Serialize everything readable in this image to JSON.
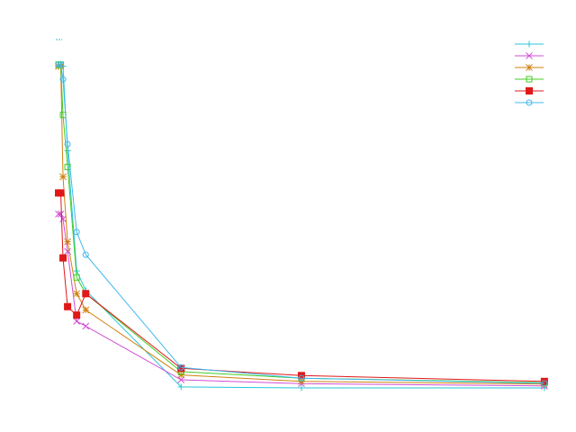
{
  "chart_data": {
    "type": "line",
    "title": "",
    "xlabel": "",
    "ylabel": "",
    "grid": false,
    "legend_position": "top-right",
    "xlim": [
      0,
      55
    ],
    "ylim": [
      0,
      1
    ],
    "series": [
      {
        "color": "#26c6da",
        "marker": "plus",
        "x": [
          0,
          0.25,
          0.5,
          1,
          2,
          3,
          13.5,
          26.75,
          53.5
        ],
        "y": [
          0.994,
          0.997,
          0.99,
          0.73,
          0.36,
          0.3,
          0.003,
          0.0,
          0.0
        ]
      },
      {
        "color": "#d24ed6",
        "marker": "x",
        "x": [
          0,
          0.25,
          0.5,
          1,
          2,
          3,
          13.5,
          26.75,
          53.5
        ],
        "y": [
          0.535,
          0.535,
          0.52,
          0.42,
          0.205,
          0.19,
          0.025,
          0.013,
          0.006
        ]
      },
      {
        "color": "#d08010",
        "marker": "asterisk",
        "x": [
          0,
          0.25,
          0.5,
          1,
          2,
          3,
          13.5,
          26.75,
          53.5
        ],
        "y": [
          0.99,
          0.99,
          0.65,
          0.45,
          0.29,
          0.24,
          0.04,
          0.02,
          0.012
        ]
      },
      {
        "color": "#44cc22",
        "marker": "square-open",
        "x": [
          0,
          0.25,
          0.5,
          1,
          2,
          3,
          13.5,
          26.75,
          53.5
        ],
        "y": [
          0.995,
          0.995,
          0.84,
          0.68,
          0.34,
          0.29,
          0.05,
          0.03,
          0.016
        ]
      },
      {
        "color": "#e01818",
        "marker": "square-filled",
        "x": [
          0,
          0.25,
          0.5,
          1,
          2,
          3,
          13.5,
          26.75,
          53.5
        ],
        "y": [
          0.6,
          0.6,
          0.4,
          0.25,
          0.224,
          0.29,
          0.06,
          0.038,
          0.02
        ]
      },
      {
        "color": "#40b8f0",
        "marker": "circle-open",
        "x": [
          0,
          0.25,
          0.5,
          1,
          2,
          3,
          13.5,
          26.75,
          53.5
        ],
        "y": [
          0.995,
          0.995,
          0.95,
          0.75,
          0.48,
          0.41,
          0.063,
          0.03,
          0.014
        ]
      }
    ]
  }
}
